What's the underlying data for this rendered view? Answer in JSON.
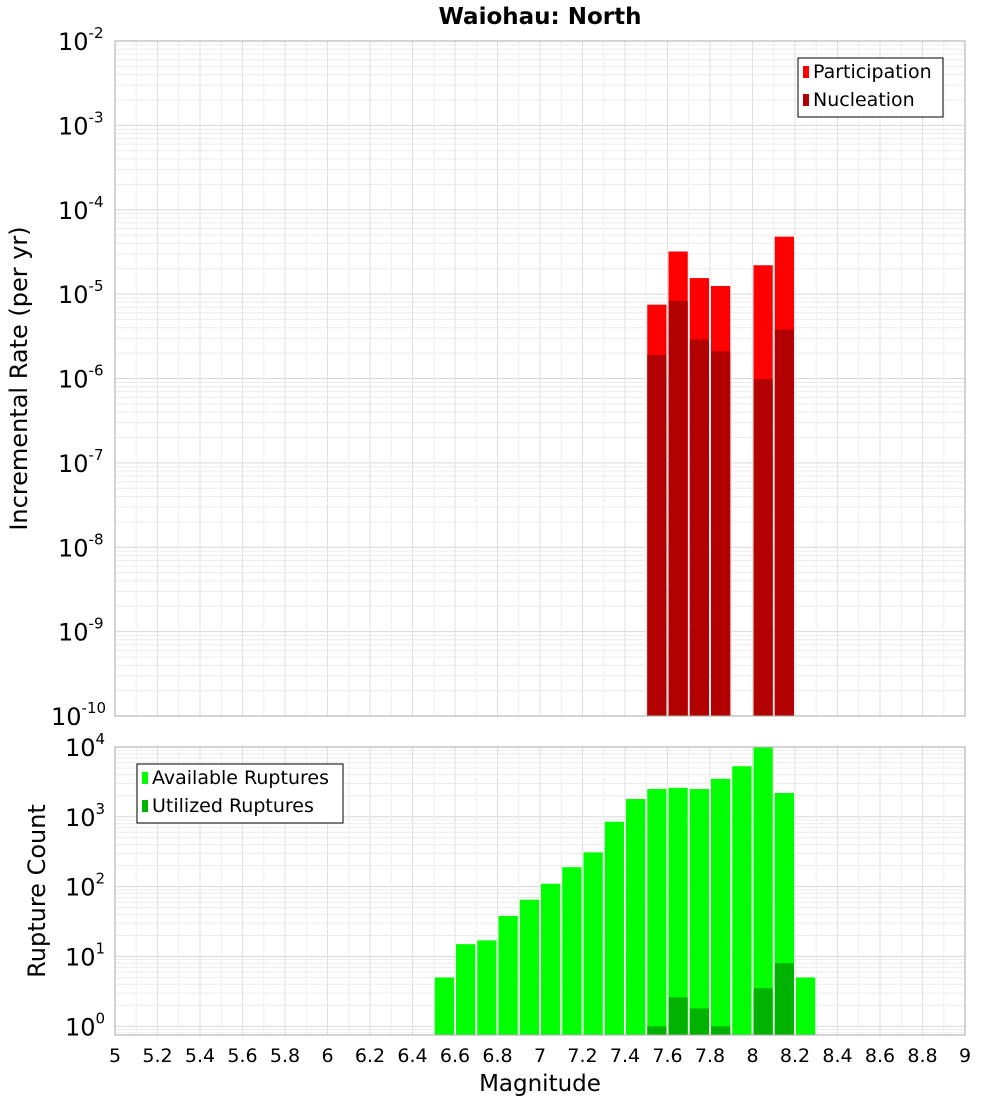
{
  "chart_data": [
    {
      "type": "bar",
      "title": "Waiohau: North",
      "ylabel": "Incremental Rate (per yr)",
      "xlabel": "",
      "yscale": "log",
      "ylim": [
        1e-10,
        0.01
      ],
      "xlim": [
        5,
        9
      ],
      "ytick_labels": [
        {
          "base": "10",
          "exp": "-10"
        },
        {
          "base": "10",
          "exp": "-9"
        },
        {
          "base": "10",
          "exp": "-8"
        },
        {
          "base": "10",
          "exp": "-7"
        },
        {
          "base": "10",
          "exp": "-6"
        },
        {
          "base": "10",
          "exp": "-5"
        },
        {
          "base": "10",
          "exp": "-4"
        },
        {
          "base": "10",
          "exp": "-3"
        },
        {
          "base": "10",
          "exp": "-2"
        }
      ],
      "grid": true,
      "legend_position": "top-right",
      "x": [
        7.55,
        7.65,
        7.75,
        7.85,
        8.05,
        8.15
      ],
      "series": [
        {
          "name": "Participation",
          "color": "#ff0000",
          "values": [
            7.5e-06,
            3.2e-05,
            1.55e-05,
            1.25e-05,
            2.2e-05,
            4.8e-05
          ]
        },
        {
          "name": "Nucleation",
          "color": "#b30000",
          "values": [
            1.9e-06,
            8.3e-06,
            2.9e-06,
            2.1e-06,
            9.8e-07,
            3.8e-06
          ]
        }
      ]
    },
    {
      "type": "bar",
      "title": "",
      "ylabel": "Rupture Count",
      "xlabel": "Magnitude",
      "yscale": "log",
      "ylim": [
        0.75,
        10000
      ],
      "xlim": [
        5,
        9
      ],
      "ytick_labels": [
        {
          "base": "10",
          "exp": "0"
        },
        {
          "base": "10",
          "exp": "1"
        },
        {
          "base": "10",
          "exp": "2"
        },
        {
          "base": "10",
          "exp": "3"
        },
        {
          "base": "10",
          "exp": "4"
        }
      ],
      "xtick_labels": [
        "5",
        "5.2",
        "5.4",
        "5.6",
        "5.8",
        "6",
        "6.2",
        "6.4",
        "6.6",
        "6.8",
        "7",
        "7.2",
        "7.4",
        "7.6",
        "7.8",
        "8",
        "8.2",
        "8.4",
        "8.6",
        "8.8",
        "9"
      ],
      "grid": true,
      "legend_position": "top-left",
      "x": [
        6.55,
        6.65,
        6.75,
        6.85,
        6.95,
        7.05,
        7.15,
        7.25,
        7.35,
        7.45,
        7.55,
        7.65,
        7.75,
        7.85,
        7.95,
        8.05,
        8.15,
        8.25
      ],
      "series": [
        {
          "name": "Available Ruptures",
          "color": "#00ff00",
          "values": [
            5,
            15,
            17,
            38,
            65,
            110,
            190,
            310,
            850,
            1800,
            2500,
            2600,
            2500,
            3500,
            5300,
            9800,
            2200,
            5
          ]
        },
        {
          "name": "Utilized Ruptures",
          "color": "#00b300",
          "values": [
            null,
            null,
            null,
            null,
            null,
            null,
            null,
            null,
            null,
            null,
            1,
            2.6,
            1.8,
            1,
            null,
            3.5,
            8,
            null
          ]
        }
      ]
    }
  ]
}
